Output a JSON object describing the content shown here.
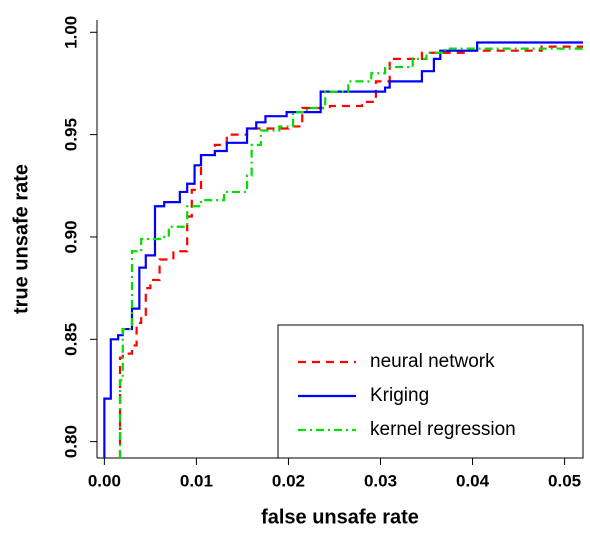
{
  "chart_data": {
    "type": "line",
    "xlabel": "false unsafe rate",
    "ylabel": "true unsafe rate",
    "xlim": [
      -0.0008,
      0.052
    ],
    "ylim": [
      0.792,
      1.006
    ],
    "xticks": [
      {
        "value": 0,
        "label": "0.00"
      },
      {
        "value": 0.01,
        "label": "0.01"
      },
      {
        "value": 0.02,
        "label": "0.02"
      },
      {
        "value": 0.03,
        "label": "0.03"
      },
      {
        "value": 0.04,
        "label": "0.04"
      },
      {
        "value": 0.05,
        "label": "0.05"
      }
    ],
    "yticks": [
      {
        "value": 0.8,
        "label": "0.80"
      },
      {
        "value": 0.85,
        "label": "0.85"
      },
      {
        "value": 0.9,
        "label": "0.90"
      },
      {
        "value": 0.95,
        "label": "0.95"
      },
      {
        "value": 1,
        "label": "1.00"
      }
    ],
    "legend": "bottomright",
    "series": [
      {
        "name": "neural network",
        "color": "#ff0000",
        "linestyle": "dashed",
        "x": [
          0.0017,
          0.0017,
          0.002,
          0.002,
          0.003,
          0.003,
          0.0035,
          0.0035,
          0.004,
          0.004,
          0.0045,
          0.0045,
          0.005,
          0.005,
          0.006,
          0.006,
          0.0075,
          0.0075,
          0.009,
          0.009,
          0.0095,
          0.0095,
          0.0105,
          0.0105,
          0.012,
          0.012,
          0.0133,
          0.0133,
          0.0155,
          0.0155,
          0.02,
          0.02,
          0.0215,
          0.0215,
          0.0245,
          0.0245,
          0.028,
          0.028,
          0.0295,
          0.0295,
          0.031,
          0.031,
          0.0345,
          0.0345,
          0.0395,
          0.0395,
          0.0475,
          0.0475,
          0.052
        ],
        "values": [
          0.792,
          0.841,
          0.841,
          0.843,
          0.843,
          0.847,
          0.847,
          0.858,
          0.858,
          0.862,
          0.862,
          0.875,
          0.875,
          0.879,
          0.879,
          0.889,
          0.889,
          0.893,
          0.893,
          0.91,
          0.91,
          0.923,
          0.923,
          0.94,
          0.94,
          0.945,
          0.945,
          0.95,
          0.95,
          0.953,
          0.953,
          0.954,
          0.954,
          0.963,
          0.963,
          0.964,
          0.964,
          0.966,
          0.966,
          0.976,
          0.976,
          0.987,
          0.987,
          0.99,
          0.99,
          0.991,
          0.991,
          0.993,
          0.993
        ]
      },
      {
        "name": "Kriging",
        "color": "#0000ff",
        "linestyle": "solid",
        "x": [
          0,
          0,
          0.0007,
          0.0007,
          0.0015,
          0.0015,
          0.002,
          0.002,
          0.003,
          0.003,
          0.0038,
          0.0038,
          0.0045,
          0.0045,
          0.0055,
          0.0055,
          0.0065,
          0.0065,
          0.0082,
          0.0082,
          0.009,
          0.009,
          0.0098,
          0.0098,
          0.0105,
          0.0105,
          0.012,
          0.012,
          0.0133,
          0.0133,
          0.0155,
          0.0155,
          0.0165,
          0.0165,
          0.0175,
          0.0175,
          0.0198,
          0.0198,
          0.0235,
          0.0235,
          0.0305,
          0.0305,
          0.031,
          0.031,
          0.0345,
          0.0345,
          0.0358,
          0.0358,
          0.0365,
          0.0365,
          0.0405,
          0.0405,
          0.052
        ],
        "values": [
          0.792,
          0.821,
          0.821,
          0.85,
          0.85,
          0.852,
          0.852,
          0.855,
          0.855,
          0.865,
          0.865,
          0.885,
          0.885,
          0.891,
          0.891,
          0.915,
          0.915,
          0.917,
          0.917,
          0.922,
          0.922,
          0.926,
          0.926,
          0.935,
          0.935,
          0.94,
          0.94,
          0.942,
          0.942,
          0.946,
          0.946,
          0.953,
          0.953,
          0.956,
          0.956,
          0.959,
          0.959,
          0.961,
          0.961,
          0.971,
          0.971,
          0.973,
          0.973,
          0.976,
          0.976,
          0.981,
          0.981,
          0.987,
          0.987,
          0.991,
          0.991,
          0.995,
          0.995
        ]
      },
      {
        "name": "kernel regression",
        "color": "#00dd00",
        "linestyle": "dashdot",
        "x": [
          0.0017,
          0.0017,
          0.002,
          0.002,
          0.003,
          0.003,
          0.004,
          0.004,
          0.0065,
          0.0065,
          0.007,
          0.007,
          0.009,
          0.009,
          0.0105,
          0.0105,
          0.013,
          0.013,
          0.0155,
          0.0155,
          0.016,
          0.016,
          0.017,
          0.017,
          0.019,
          0.019,
          0.0205,
          0.0205,
          0.022,
          0.022,
          0.024,
          0.024,
          0.0265,
          0.0265,
          0.029,
          0.029,
          0.0305,
          0.0305,
          0.0335,
          0.0335,
          0.035,
          0.035,
          0.037,
          0.037,
          0.052
        ],
        "values": [
          0.792,
          0.83,
          0.83,
          0.855,
          0.855,
          0.893,
          0.893,
          0.899,
          0.899,
          0.9,
          0.9,
          0.905,
          0.905,
          0.915,
          0.915,
          0.918,
          0.918,
          0.922,
          0.922,
          0.93,
          0.93,
          0.945,
          0.945,
          0.952,
          0.952,
          0.954,
          0.954,
          0.961,
          0.961,
          0.963,
          0.963,
          0.971,
          0.971,
          0.976,
          0.976,
          0.98,
          0.98,
          0.983,
          0.983,
          0.987,
          0.987,
          0.99,
          0.99,
          0.992,
          0.992
        ]
      }
    ]
  }
}
